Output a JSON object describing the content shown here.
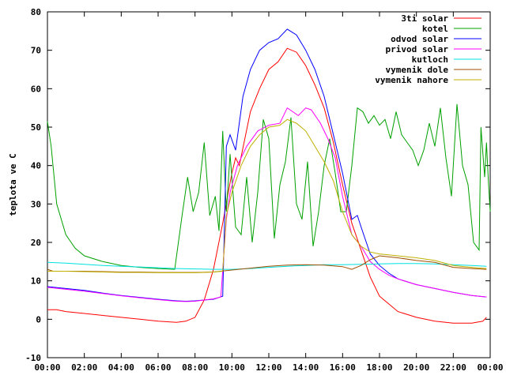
{
  "chart_data": {
    "type": "line",
    "title": "",
    "xlabel": "",
    "ylabel": "teplota ve C",
    "xlim": [
      0,
      24
    ],
    "ylim": [
      -10,
      80
    ],
    "x_ticks": [
      "00:00",
      "02:00",
      "04:00",
      "06:00",
      "08:00",
      "10:00",
      "12:00",
      "14:00",
      "16:00",
      "18:00",
      "20:00",
      "22:00",
      "00:00"
    ],
    "y_ticks": [
      "-10",
      "0",
      "10",
      "20",
      "30",
      "40",
      "50",
      "60",
      "70",
      "80"
    ],
    "grid": false,
    "legend_position": "top-right",
    "series": [
      {
        "name": "3ti solar",
        "color": "#ff0000",
        "points": [
          [
            0,
            2.5
          ],
          [
            0.5,
            2.5
          ],
          [
            1,
            2
          ],
          [
            2,
            1.5
          ],
          [
            3,
            1
          ],
          [
            4,
            0.5
          ],
          [
            5,
            0
          ],
          [
            6,
            -0.5
          ],
          [
            7,
            -0.8
          ],
          [
            7.5,
            -0.5
          ],
          [
            8,
            0.5
          ],
          [
            8.5,
            5
          ],
          [
            9,
            13
          ],
          [
            9.5,
            25
          ],
          [
            9.8,
            33
          ],
          [
            10,
            38
          ],
          [
            10.2,
            42
          ],
          [
            10.4,
            40
          ],
          [
            11,
            54
          ],
          [
            11.5,
            60
          ],
          [
            12,
            65
          ],
          [
            12.5,
            67
          ],
          [
            13,
            70.5
          ],
          [
            13.5,
            69.5
          ],
          [
            14,
            66
          ],
          [
            14.5,
            61
          ],
          [
            15,
            55
          ],
          [
            15.5,
            46
          ],
          [
            16,
            35
          ],
          [
            16.5,
            25
          ],
          [
            17,
            18
          ],
          [
            17.5,
            11
          ],
          [
            18,
            6
          ],
          [
            18.5,
            4
          ],
          [
            19,
            2
          ],
          [
            20,
            0.5
          ],
          [
            21,
            -0.5
          ],
          [
            22,
            -1
          ],
          [
            23,
            -1
          ],
          [
            23.6,
            -0.5
          ],
          [
            23.8,
            0.5
          ]
        ]
      },
      {
        "name": "kotel",
        "color": "#00a000",
        "points": [
          [
            0,
            51.5
          ],
          [
            0.2,
            45
          ],
          [
            0.5,
            30
          ],
          [
            1,
            22
          ],
          [
            1.5,
            18.5
          ],
          [
            2,
            16.5
          ],
          [
            3,
            15
          ],
          [
            4,
            14
          ],
          [
            5,
            13.5
          ],
          [
            6,
            13.2
          ],
          [
            6.9,
            13
          ],
          [
            7.3,
            27
          ],
          [
            7.6,
            37
          ],
          [
            7.9,
            28
          ],
          [
            8.2,
            33
          ],
          [
            8.5,
            46
          ],
          [
            8.8,
            27
          ],
          [
            9.1,
            32
          ],
          [
            9.3,
            23
          ],
          [
            9.5,
            49
          ],
          [
            9.7,
            28
          ],
          [
            9.9,
            43
          ],
          [
            10.2,
            24
          ],
          [
            10.5,
            22
          ],
          [
            10.8,
            37
          ],
          [
            11.1,
            20
          ],
          [
            11.4,
            33
          ],
          [
            11.7,
            52
          ],
          [
            12,
            47
          ],
          [
            12.3,
            21
          ],
          [
            12.6,
            35
          ],
          [
            12.9,
            41
          ],
          [
            13.2,
            52.5
          ],
          [
            13.5,
            30
          ],
          [
            13.8,
            26
          ],
          [
            14.1,
            41
          ],
          [
            14.4,
            19
          ],
          [
            14.7,
            28
          ],
          [
            15,
            40
          ],
          [
            15.3,
            47
          ],
          [
            15.6,
            38
          ],
          [
            15.9,
            28
          ],
          [
            16.2,
            28
          ],
          [
            16.5,
            40
          ],
          [
            16.8,
            55
          ],
          [
            17.1,
            54
          ],
          [
            17.4,
            51
          ],
          [
            17.7,
            53
          ],
          [
            18,
            50.5
          ],
          [
            18.3,
            52
          ],
          [
            18.6,
            47
          ],
          [
            18.9,
            54
          ],
          [
            19.2,
            48
          ],
          [
            19.5,
            46
          ],
          [
            19.8,
            44
          ],
          [
            20.1,
            40
          ],
          [
            20.4,
            44
          ],
          [
            20.7,
            51
          ],
          [
            21,
            45
          ],
          [
            21.3,
            55
          ],
          [
            21.6,
            42
          ],
          [
            21.9,
            32
          ],
          [
            22.2,
            56
          ],
          [
            22.5,
            40
          ],
          [
            22.8,
            35
          ],
          [
            23.1,
            20
          ],
          [
            23.4,
            18
          ],
          [
            23.5,
            50
          ],
          [
            23.7,
            37
          ],
          [
            23.8,
            46
          ],
          [
            23.9,
            36
          ],
          [
            24,
            28
          ]
        ]
      },
      {
        "name": "odvod solar",
        "color": "#0000ff",
        "points": [
          [
            0,
            8.5
          ],
          [
            1,
            8
          ],
          [
            2,
            7.5
          ],
          [
            3,
            6.8
          ],
          [
            4,
            6.2
          ],
          [
            5,
            5.7
          ],
          [
            6,
            5.2
          ],
          [
            7,
            4.8
          ],
          [
            7.5,
            4.7
          ],
          [
            8,
            4.8
          ],
          [
            8.5,
            5
          ],
          [
            9,
            5.2
          ],
          [
            9.5,
            6
          ],
          [
            9.7,
            45
          ],
          [
            9.9,
            48
          ],
          [
            10.2,
            44
          ],
          [
            10.6,
            58
          ],
          [
            11,
            65
          ],
          [
            11.5,
            70
          ],
          [
            12,
            72
          ],
          [
            12.5,
            73
          ],
          [
            13,
            75.5
          ],
          [
            13.5,
            74
          ],
          [
            14,
            70
          ],
          [
            14.5,
            65
          ],
          [
            15,
            58
          ],
          [
            15.5,
            48
          ],
          [
            16,
            38
          ],
          [
            16.5,
            26
          ],
          [
            16.8,
            27
          ],
          [
            17,
            24
          ],
          [
            17.5,
            17
          ],
          [
            18,
            14
          ],
          [
            18.5,
            12
          ],
          [
            19,
            10.5
          ],
          [
            20,
            9
          ],
          [
            21,
            8
          ],
          [
            22,
            7
          ],
          [
            23,
            6.2
          ],
          [
            23.8,
            5.8
          ]
        ]
      },
      {
        "name": "privod solar",
        "color": "#ff00ff",
        "points": [
          [
            0,
            8.3
          ],
          [
            1,
            7.8
          ],
          [
            2,
            7.3
          ],
          [
            3,
            6.7
          ],
          [
            4,
            6.1
          ],
          [
            5,
            5.6
          ],
          [
            6,
            5.1
          ],
          [
            7,
            4.7
          ],
          [
            7.5,
            4.6
          ],
          [
            8,
            4.7
          ],
          [
            8.5,
            5
          ],
          [
            9,
            5.3
          ],
          [
            9.4,
            5.8
          ],
          [
            9.7,
            26
          ],
          [
            9.9,
            33
          ],
          [
            10.3,
            40
          ],
          [
            10.8,
            45
          ],
          [
            11.4,
            49
          ],
          [
            12,
            50.5
          ],
          [
            12.6,
            51
          ],
          [
            13,
            55
          ],
          [
            13.3,
            54
          ],
          [
            13.6,
            53
          ],
          [
            14,
            55
          ],
          [
            14.3,
            54.5
          ],
          [
            14.8,
            51
          ],
          [
            15.2,
            47
          ],
          [
            15.6,
            42
          ],
          [
            16,
            32
          ],
          [
            16.5,
            22
          ],
          [
            17,
            19
          ],
          [
            17.5,
            15
          ],
          [
            18,
            13
          ],
          [
            18.5,
            11.5
          ],
          [
            19,
            10.5
          ],
          [
            20,
            9
          ],
          [
            21,
            8
          ],
          [
            22,
            7
          ],
          [
            23,
            6.2
          ],
          [
            23.8,
            5.8
          ]
        ]
      },
      {
        "name": "kutloch",
        "color": "#00e0e0",
        "points": [
          [
            0,
            14.8
          ],
          [
            1,
            14.6
          ],
          [
            2,
            14.3
          ],
          [
            3,
            14
          ],
          [
            4,
            13.8
          ],
          [
            5,
            13.6
          ],
          [
            6,
            13.4
          ],
          [
            7,
            13.2
          ],
          [
            8,
            13.1
          ],
          [
            9,
            13
          ],
          [
            10,
            13
          ],
          [
            11,
            13.2
          ],
          [
            12,
            13.5
          ],
          [
            13,
            13.8
          ],
          [
            14,
            14
          ],
          [
            15,
            14.2
          ],
          [
            16,
            14.2
          ],
          [
            17,
            14.3
          ],
          [
            18,
            14.4
          ],
          [
            19,
            14.5
          ],
          [
            20,
            14.5
          ],
          [
            21,
            14.4
          ],
          [
            22,
            14.2
          ],
          [
            23,
            14
          ],
          [
            23.8,
            13.8
          ]
        ]
      },
      {
        "name": "vymenik dole",
        "color": "#a05000",
        "points": [
          [
            0,
            13
          ],
          [
            0.3,
            12.5
          ],
          [
            1,
            12.5
          ],
          [
            2,
            12.5
          ],
          [
            3,
            12.4
          ],
          [
            4,
            12.3
          ],
          [
            5,
            12.3
          ],
          [
            6,
            12.2
          ],
          [
            7,
            12.2
          ],
          [
            8,
            12.2
          ],
          [
            9,
            12.3
          ],
          [
            10,
            12.8
          ],
          [
            11,
            13.3
          ],
          [
            12,
            13.8
          ],
          [
            13,
            14.1
          ],
          [
            14,
            14.2
          ],
          [
            15,
            14.1
          ],
          [
            16,
            13.7
          ],
          [
            16.5,
            13
          ],
          [
            17,
            14
          ],
          [
            17.5,
            15.5
          ],
          [
            18,
            16.5
          ],
          [
            19,
            16
          ],
          [
            20,
            15.3
          ],
          [
            21,
            14.8
          ],
          [
            22,
            13.5
          ],
          [
            23,
            13.2
          ],
          [
            23.8,
            13
          ]
        ]
      },
      {
        "name": "vymenik nahore",
        "color": "#c0b000",
        "points": [
          [
            0,
            12.5
          ],
          [
            1,
            12.5
          ],
          [
            2,
            12.4
          ],
          [
            3,
            12.3
          ],
          [
            4,
            12.2
          ],
          [
            5,
            12.2
          ],
          [
            6,
            12.1
          ],
          [
            7,
            12.1
          ],
          [
            8,
            12.1
          ],
          [
            9,
            12.3
          ],
          [
            9.5,
            12.5
          ],
          [
            9.7,
            27
          ],
          [
            10,
            33
          ],
          [
            10.5,
            40
          ],
          [
            11,
            45
          ],
          [
            11.5,
            48
          ],
          [
            12,
            50
          ],
          [
            12.6,
            50.5
          ],
          [
            13,
            52
          ],
          [
            13.5,
            51
          ],
          [
            14,
            49
          ],
          [
            14.5,
            45
          ],
          [
            15,
            41
          ],
          [
            15.5,
            36
          ],
          [
            16,
            28
          ],
          [
            16.5,
            22
          ],
          [
            17,
            19
          ],
          [
            17.5,
            17.5
          ],
          [
            18,
            17
          ],
          [
            19,
            16.5
          ],
          [
            20,
            16
          ],
          [
            21,
            15.3
          ],
          [
            22,
            14
          ],
          [
            23,
            13.5
          ],
          [
            23.8,
            13.2
          ]
        ]
      }
    ]
  }
}
